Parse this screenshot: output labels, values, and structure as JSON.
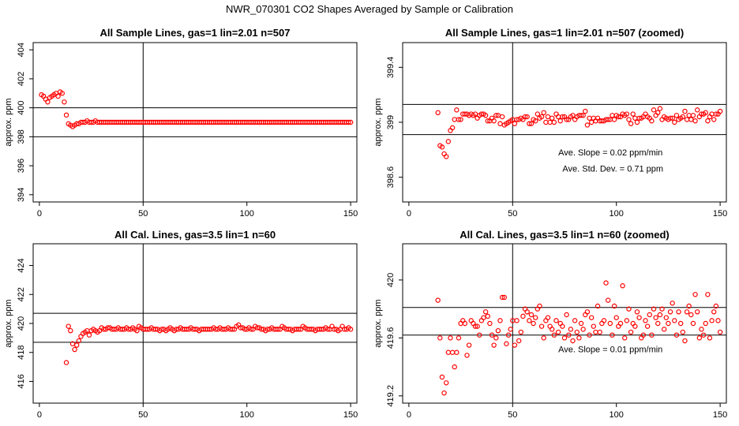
{
  "main_title": "NWR_070301  CO2 Shapes Averaged by Sample or Calibration",
  "colors": {
    "points": "#ff0000",
    "lines": "#000000",
    "frame": "#000000"
  },
  "chart_data": [
    {
      "type": "scatter",
      "title": "All Sample Lines, gas=1 lin=2.01 n=507",
      "ylabel": "approx. ppm",
      "xlim": [
        -3,
        153
      ],
      "ylim": [
        393.5,
        404.5
      ],
      "xticks": [
        0,
        50,
        100,
        150
      ],
      "yticks": [
        394,
        396,
        398,
        400,
        402,
        404
      ],
      "hlines": [
        398,
        400
      ],
      "vline": 50,
      "annotations": [],
      "series": [
        {
          "x_start": 1,
          "x_end": 150,
          "y": [
            400.9,
            400.8,
            400.6,
            400.4,
            400.7,
            400.8,
            400.9,
            401.0,
            400.8,
            401.1,
            401.0,
            400.4,
            399.5,
            398.9,
            398.8,
            398.7,
            398.8,
            398.9,
            398.9,
            399.0,
            399.0,
            399.0,
            399.1,
            399.0,
            399.0,
            399.0,
            399.1,
            399.0,
            399.0,
            399.0,
            399.0,
            399.0,
            399.0,
            399.0,
            399.0,
            399.0,
            399.0,
            399.0,
            399.0,
            399.0,
            399.0,
            399.0,
            399.0,
            399.0,
            399.0,
            399.0,
            399.0,
            399.0,
            399.0,
            399.0,
            399.0,
            399.0,
            399.0,
            399.0,
            399.0,
            399.0,
            399.0,
            399.0,
            399.0,
            399.0,
            399.0,
            399.0,
            399.0,
            399.0,
            399.0,
            399.0,
            399.0,
            399.0,
            399.0,
            399.0,
            399.0,
            399.0,
            399.0,
            399.0,
            399.0,
            399.0,
            399.0,
            399.0,
            399.0,
            399.0,
            399.0,
            399.0,
            399.0,
            399.0,
            399.0,
            399.0,
            399.0,
            399.0,
            399.0,
            399.0,
            399.0,
            399.0,
            399.0,
            399.0,
            399.0,
            399.0,
            399.0,
            399.0,
            399.0,
            399.0,
            399.0,
            399.0,
            399.0,
            399.0,
            399.0,
            399.0,
            399.0,
            399.0,
            399.0,
            399.0,
            399.0,
            399.0,
            399.0,
            399.0,
            399.0,
            399.0,
            399.0,
            399.0,
            399.0,
            399.0,
            399.0,
            399.0,
            399.0,
            399.0,
            399.0,
            399.0,
            399.0,
            399.0,
            399.0,
            399.0,
            399.0,
            399.0,
            399.0,
            399.0,
            399.0,
            399.0,
            399.0,
            399.0,
            399.0,
            399.0,
            399.0,
            399.0,
            399.0,
            399.0,
            399.0,
            399.0,
            399.0,
            399.0,
            399.0,
            399.0
          ]
        }
      ]
    },
    {
      "type": "scatter",
      "title": "All Sample Lines, gas=1 lin=2.01 n=507 (zoomed)",
      "ylabel": "approx. ppm",
      "xlim": [
        -3,
        153
      ],
      "ylim": [
        398.42,
        399.58
      ],
      "xticks": [
        0,
        50,
        100,
        150
      ],
      "yticks": [
        398.6,
        399.0,
        399.4
      ],
      "hlines": [
        398.91,
        399.13
      ],
      "vline": 50,
      "annotations": [
        {
          "text": "Ave. Slope =  0.02  ppm/min",
          "x": 72,
          "y": 398.76
        },
        {
          "text": "Ave. Std. Dev. =  0.71  ppm",
          "x": 74,
          "y": 398.64
        }
      ],
      "series": [
        {
          "x_start": 14,
          "x_end": 150,
          "y": [
            399.07,
            398.83,
            398.82,
            398.77,
            398.75,
            398.86,
            398.94,
            398.96,
            399.02,
            399.09,
            399.02,
            399.02,
            399.06,
            399.06,
            399.06,
            399.05,
            399.06,
            399.05,
            399.06,
            399.03,
            399.05,
            399.06,
            399.06,
            399.05,
            399.01,
            399.01,
            399.03,
            399.01,
            399.05,
            399.05,
            398.99,
            399.04,
            398.98,
            398.99,
            399.0,
            399.01,
            399.02,
            398.99,
            399.02,
            399.02,
            399.03,
            399.02,
            399.04,
            399.04,
            398.99,
            398.99,
            399.02,
            399.01,
            399.06,
            399.03,
            399.04,
            399.07,
            399.0,
            399.04,
            399.0,
            399.03,
            399.0,
            399.06,
            399.04,
            399.01,
            399.04,
            399.04,
            399.02,
            399.02,
            399.04,
            399.05,
            399.02,
            399.04,
            399.05,
            399.05,
            399.05,
            399.08,
            398.98,
            399.03,
            399.0,
            399.03,
            399.01,
            399.03,
            399.01,
            399.01,
            399.01,
            399.02,
            399.02,
            399.02,
            399.05,
            399.02,
            399.05,
            399.04,
            399.04,
            399.06,
            399.05,
            399.06,
            399.02,
            398.99,
            399.06,
            399.03,
            399.0,
            399.03,
            399.03,
            399.04,
            399.06,
            399.04,
            399.03,
            399.01,
            399.09,
            399.05,
            399.07,
            399.1,
            399.02,
            399.04,
            399.03,
            399.02,
            399.03,
            399.03,
            399.0,
            399.05,
            399.02,
            399.03,
            399.04,
            399.08,
            399.02,
            399.05,
            399.02,
            399.05,
            399.01,
            399.09,
            399.04,
            399.06,
            399.06,
            399.07,
            399.01,
            399.04,
            399.06,
            399.02,
            399.06,
            399.06,
            399.08
          ]
        }
      ]
    },
    {
      "type": "scatter",
      "title": "All Cal. Lines, gas=3.5 lin=1 n=60",
      "ylabel": "approx. ppm",
      "xlim": [
        -3,
        153
      ],
      "ylim": [
        414.5,
        425.5
      ],
      "xticks": [
        0,
        50,
        100,
        150
      ],
      "yticks": [
        416,
        418,
        420,
        422,
        424
      ],
      "hlines": [
        418.7,
        420.7
      ],
      "vline": 50,
      "annotations": [],
      "series": [
        {
          "x_start": 13,
          "x_end": 150,
          "y": [
            417.3,
            419.8,
            419.5,
            418.6,
            418.2,
            418.5,
            418.8,
            419.1,
            419.3,
            419.4,
            419.5,
            419.2,
            419.5,
            419.6,
            419.5,
            419.4,
            419.5,
            419.7,
            419.6,
            419.6,
            419.7,
            419.7,
            419.6,
            419.6,
            419.6,
            419.7,
            419.6,
            419.6,
            419.6,
            419.7,
            419.6,
            419.6,
            419.7,
            419.6,
            419.5,
            419.8,
            419.7,
            419.6,
            419.6,
            419.6,
            419.6,
            419.7,
            419.6,
            419.6,
            419.6,
            419.5,
            419.6,
            419.6,
            419.5,
            419.6,
            419.7,
            419.6,
            419.5,
            419.6,
            419.6,
            419.7,
            419.6,
            419.6,
            419.6,
            419.6,
            419.7,
            419.6,
            419.6,
            419.6,
            419.5,
            419.6,
            419.6,
            419.6,
            419.6,
            419.6,
            419.6,
            419.7,
            419.6,
            419.6,
            419.7,
            419.6,
            419.6,
            419.6,
            419.7,
            419.6,
            419.6,
            419.6,
            419.8,
            419.9,
            419.7,
            419.7,
            419.6,
            419.6,
            419.7,
            419.6,
            419.6,
            419.8,
            419.7,
            419.7,
            419.6,
            419.6,
            419.5,
            419.6,
            419.6,
            419.7,
            419.6,
            419.6,
            419.6,
            419.6,
            419.8,
            419.7,
            419.6,
            419.6,
            419.6,
            419.5,
            419.6,
            419.6,
            419.6,
            419.6,
            419.8,
            419.7,
            419.6,
            419.6,
            419.6,
            419.6,
            419.5,
            419.6,
            419.6,
            419.6,
            419.6,
            419.7,
            419.6,
            419.6,
            419.8,
            419.6,
            419.6,
            419.5,
            419.6,
            419.8,
            419.6,
            419.6,
            419.7,
            419.6
          ]
        }
      ]
    },
    {
      "type": "scatter",
      "title": "All Cal. Lines, gas=3.5 lin=1 n=60 (zoomed)",
      "ylabel": "approx. ppm",
      "xlim": [
        -3,
        153
      ],
      "ylim": [
        419.15,
        420.25
      ],
      "xticks": [
        0,
        50,
        100,
        150
      ],
      "yticks": [
        419.2,
        419.6,
        420.0
      ],
      "hlines": [
        419.62,
        419.81
      ],
      "vline": 50,
      "annotations": [
        {
          "text": "Ave. Slope =  0.01  ppm/min",
          "x": 72,
          "y": 419.5
        }
      ],
      "series": [
        {
          "x_start": 14,
          "x_end": 150,
          "y": [
            419.86,
            419.6,
            419.33,
            419.22,
            419.29,
            419.5,
            419.6,
            419.5,
            419.4,
            419.5,
            419.6,
            419.7,
            419.72,
            419.7,
            419.48,
            419.55,
            419.72,
            419.7,
            419.68,
            419.68,
            419.62,
            419.72,
            419.74,
            419.78,
            419.75,
            419.7,
            419.62,
            419.55,
            419.6,
            419.65,
            419.72,
            419.88,
            419.88,
            419.56,
            419.62,
            419.66,
            419.72,
            419.55,
            419.72,
            419.58,
            419.64,
            419.75,
            419.8,
            419.78,
            419.72,
            419.76,
            419.7,
            419.74,
            419.8,
            419.82,
            419.68,
            419.6,
            419.72,
            419.74,
            419.68,
            419.66,
            419.62,
            419.72,
            419.64,
            419.7,
            419.68,
            419.6,
            419.76,
            419.62,
            419.66,
            419.58,
            419.72,
            419.64,
            419.6,
            419.7,
            419.66,
            419.76,
            419.78,
            419.62,
            419.74,
            419.68,
            419.64,
            419.82,
            419.64,
            419.7,
            419.72,
            419.98,
            419.86,
            419.7,
            419.62,
            419.82,
            419.74,
            419.68,
            419.7,
            419.96,
            419.6,
            419.72,
            419.8,
            419.64,
            419.7,
            419.68,
            419.78,
            419.74,
            419.6,
            419.62,
            419.72,
            419.68,
            419.76,
            419.62,
            419.8,
            419.74,
            419.7,
            419.76,
            419.8,
            419.66,
            419.74,
            419.7,
            419.78,
            419.84,
            419.72,
            419.62,
            419.78,
            419.7,
            419.64,
            419.58,
            419.78,
            419.82,
            419.76,
            419.7,
            419.9,
            419.78,
            419.6,
            419.66,
            419.62,
            419.7,
            419.9,
            419.6,
            419.72,
            419.78,
            419.82,
            419.72,
            419.64
          ]
        }
      ]
    }
  ]
}
